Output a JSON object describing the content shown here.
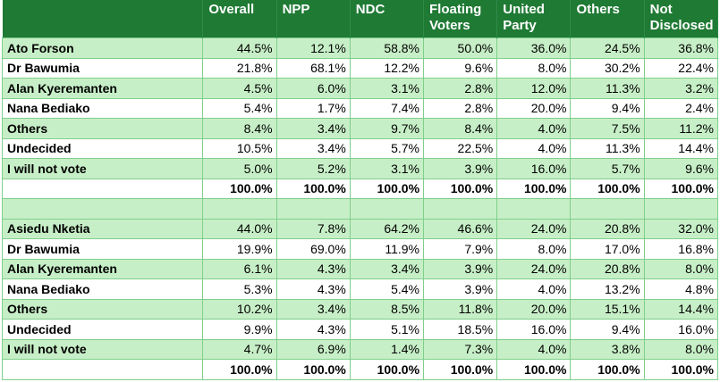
{
  "columns": [
    "",
    "Overall",
    "NPP",
    "NDC",
    "Floating Voters",
    "United Party",
    "Others",
    "Not Disclosed"
  ],
  "section1": {
    "rows": [
      {
        "name": "Ato Forson",
        "values": [
          "44.5%",
          "12.1%",
          "58.8%",
          "50.0%",
          "36.0%",
          "24.5%",
          "36.8%"
        ]
      },
      {
        "name": "Dr Bawumia",
        "values": [
          "21.8%",
          "68.1%",
          "12.2%",
          "9.6%",
          "8.0%",
          "30.2%",
          "22.4%"
        ]
      },
      {
        "name": "Alan Kyeremanten",
        "values": [
          "4.5%",
          "6.0%",
          "3.1%",
          "2.8%",
          "12.0%",
          "11.3%",
          "3.2%"
        ]
      },
      {
        "name": "Nana Bediako",
        "values": [
          "5.4%",
          "1.7%",
          "7.4%",
          "2.8%",
          "20.0%",
          "9.4%",
          "2.4%"
        ]
      },
      {
        "name": "Others",
        "values": [
          "8.4%",
          "3.4%",
          "9.7%",
          "8.4%",
          "4.0%",
          "7.5%",
          "11.2%"
        ]
      },
      {
        "name": "Undecided",
        "values": [
          "10.5%",
          "3.4%",
          "5.7%",
          "22.5%",
          "4.0%",
          "11.3%",
          "14.4%"
        ]
      },
      {
        "name": "I will not vote",
        "values": [
          "5.0%",
          "5.2%",
          "3.1%",
          "3.9%",
          "16.0%",
          "5.7%",
          "9.6%"
        ]
      }
    ],
    "total": [
      "100.0%",
      "100.0%",
      "100.0%",
      "100.0%",
      "100.0%",
      "100.0%",
      "100.0%"
    ]
  },
  "section2": {
    "rows": [
      {
        "name": "Asiedu Nketia",
        "values": [
          "44.0%",
          "7.8%",
          "64.2%",
          "46.6%",
          "24.0%",
          "20.8%",
          "32.0%"
        ]
      },
      {
        "name": "Dr Bawumia",
        "values": [
          "19.9%",
          "69.0%",
          "11.9%",
          "7.9%",
          "8.0%",
          "17.0%",
          "16.8%"
        ]
      },
      {
        "name": "Alan Kyeremanten",
        "values": [
          "6.1%",
          "4.3%",
          "3.4%",
          "3.9%",
          "24.0%",
          "20.8%",
          "8.0%"
        ]
      },
      {
        "name": "Nana Bediako",
        "values": [
          "5.3%",
          "4.3%",
          "5.4%",
          "3.9%",
          "4.0%",
          "13.2%",
          "4.8%"
        ]
      },
      {
        "name": "Others",
        "values": [
          "10.2%",
          "3.4%",
          "8.5%",
          "11.8%",
          "20.0%",
          "15.1%",
          "14.4%"
        ]
      },
      {
        "name": "Undecided",
        "values": [
          "9.9%",
          "4.3%",
          "5.1%",
          "18.5%",
          "16.0%",
          "9.4%",
          "16.0%"
        ]
      },
      {
        "name": "I will not vote",
        "values": [
          "4.7%",
          "6.9%",
          "1.4%",
          "7.3%",
          "4.0%",
          "3.8%",
          "8.0%"
        ]
      }
    ],
    "total": [
      "100.0%",
      "100.0%",
      "100.0%",
      "100.0%",
      "100.0%",
      "100.0%",
      "100.0%"
    ]
  },
  "colors": {
    "header": "#1f7a34",
    "shade": "#c7efc7",
    "border": "#7fcf8a"
  }
}
